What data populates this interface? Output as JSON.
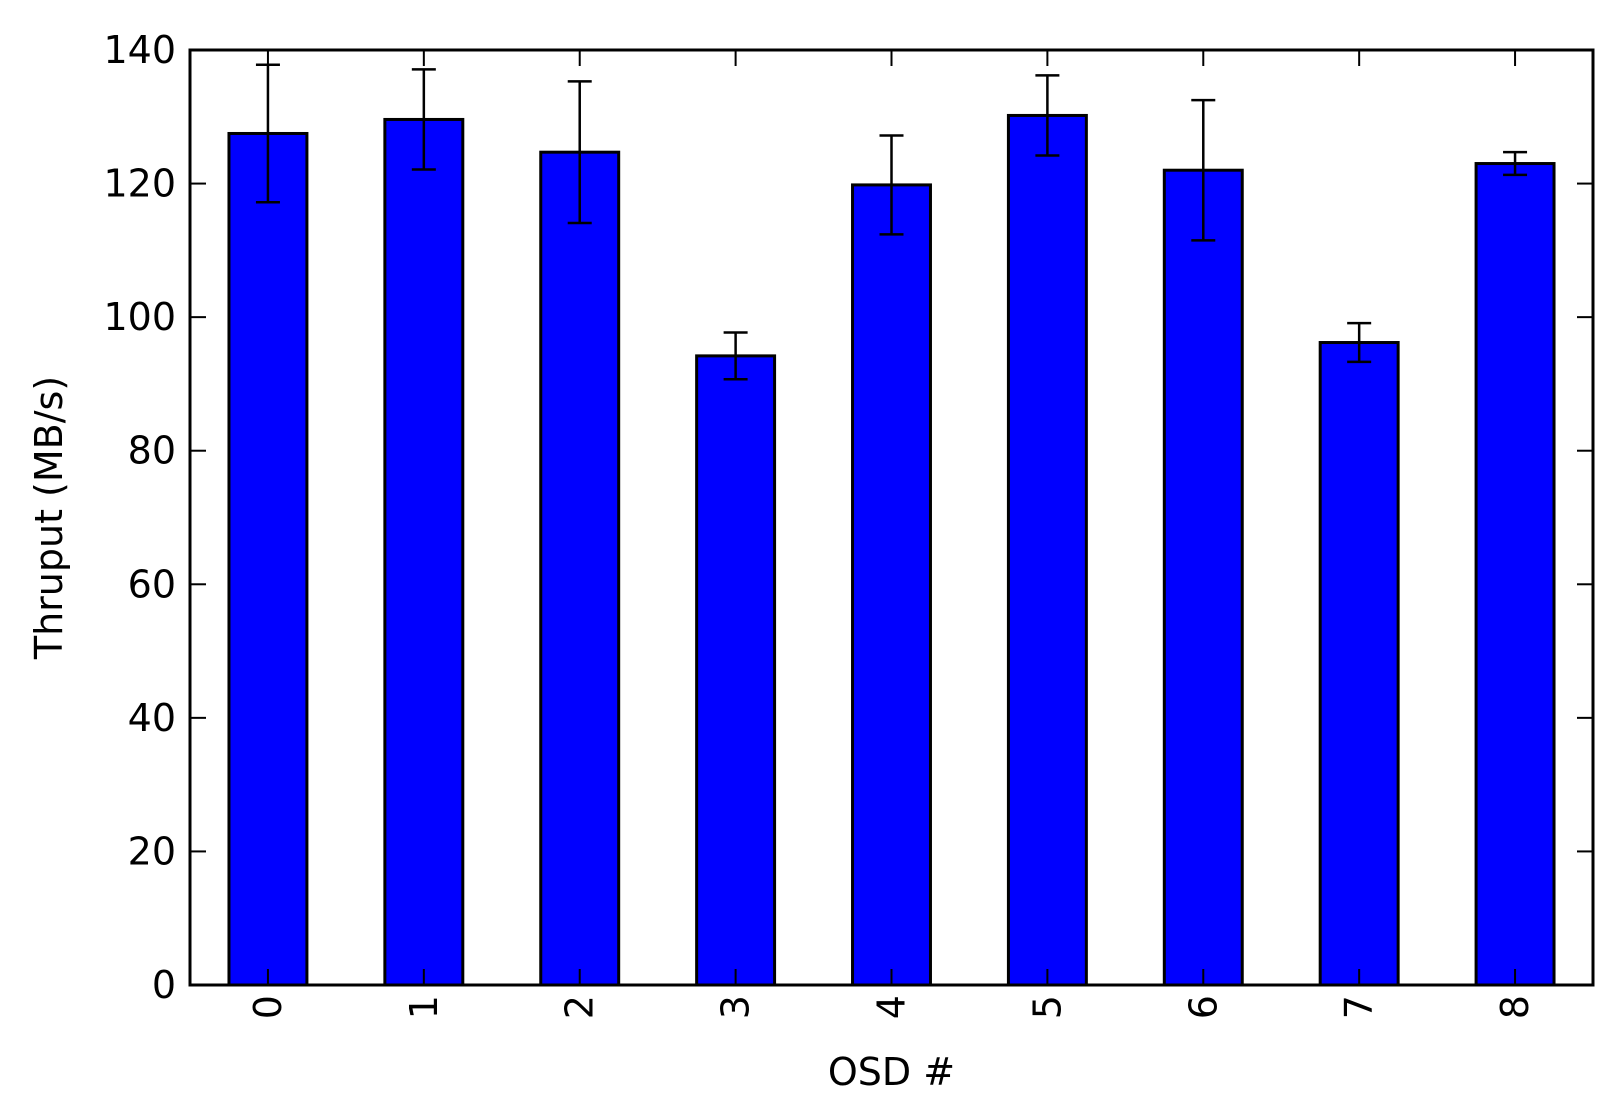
{
  "chart_data": {
    "type": "bar",
    "categories": [
      "0",
      "1",
      "2",
      "3",
      "4",
      "5",
      "6",
      "7",
      "8"
    ],
    "series": [
      {
        "values": [
          127.5,
          129.6,
          124.7,
          94.2,
          119.8,
          130.2,
          122.0,
          96.2,
          123.0
        ],
        "error": [
          10.3,
          7.5,
          10.6,
          3.5,
          7.4,
          6.0,
          10.5,
          2.9,
          1.7
        ]
      }
    ],
    "xlabel": "OSD #",
    "ylabel": "Thruput (MB/s)",
    "ylim": [
      0,
      140
    ],
    "yticks": [
      0,
      20,
      40,
      60,
      80,
      100,
      120,
      140
    ],
    "bar_color": "#0000ff",
    "edge_color": "#000000",
    "xtick_rotation": "vertical",
    "grid": false,
    "legend": "none"
  }
}
